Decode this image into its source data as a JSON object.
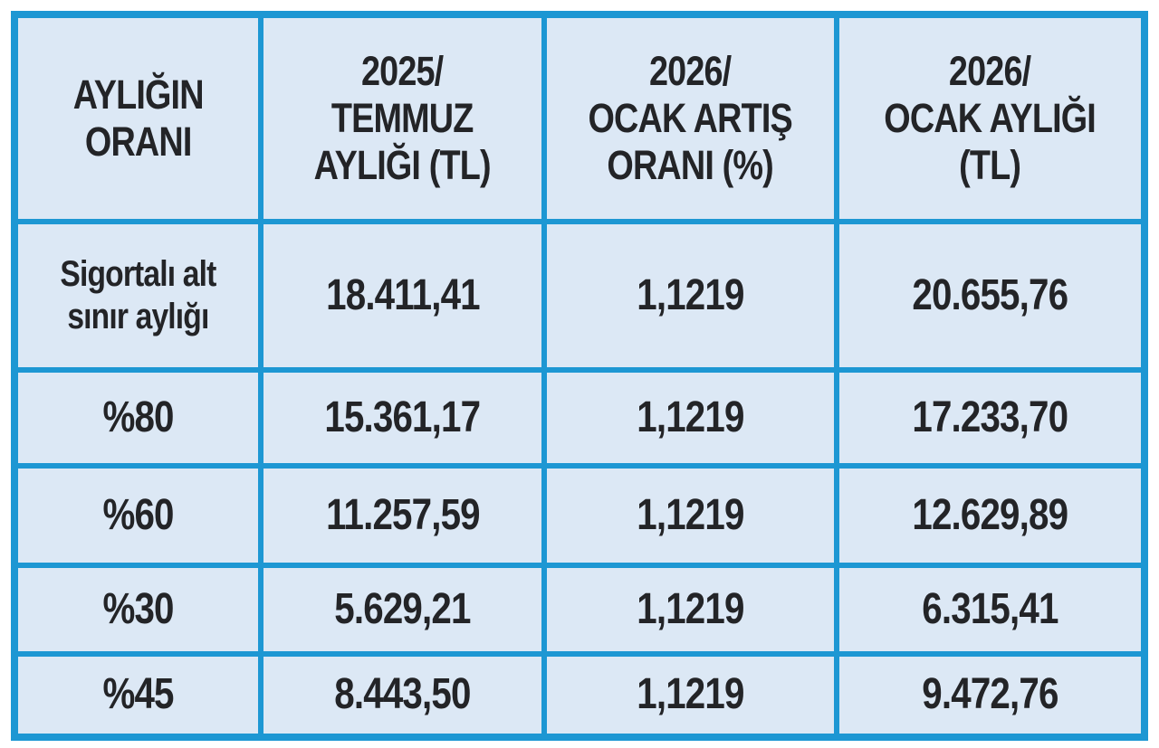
{
  "headers": [
    "AYLIĞIN\nORANI",
    "2025/\nTEMMUZ\nAYLIĞI (TL)",
    "2026/\nOCAK ARTIŞ\nORANI (%)",
    "2026/\nOCAK AYLIĞI\n(TL)"
  ],
  "rows": [
    [
      "Sigortalı alt\nsınır aylığı",
      "18.411,41",
      "1,1219",
      "20.655,76"
    ],
    [
      "%80",
      "15.361,17",
      "1,1219",
      "17.233,70"
    ],
    [
      "%60",
      "11.257,59",
      "1,1219",
      "12.629,89"
    ],
    [
      "%30",
      "5.629,21",
      "1,1219",
      "6.315,41"
    ],
    [
      "%45",
      "8.443,50",
      "1,1219",
      "9.472,76"
    ]
  ],
  "colors": {
    "border_blue": "#1d97d3",
    "cell_bg": "#dce8f5",
    "text": "#232427",
    "page_bg": "#ffffff"
  },
  "chart_data": {
    "type": "table",
    "columns": [
      "Aylığın Oranı",
      "2025/Temmuz Aylığı (TL)",
      "2026/Ocak Artış Oranı (%)",
      "2026/Ocak Aylığı (TL)"
    ],
    "rows": [
      [
        "Sigortalı alt sınır aylığı",
        "18.411,41",
        "1,1219",
        "20.655,76"
      ],
      [
        "%80",
        "15.361,17",
        "1,1219",
        "17.233,70"
      ],
      [
        "%60",
        "11.257,59",
        "1,1219",
        "12.629,89"
      ],
      [
        "%30",
        "5.629,21",
        "1,1219",
        "6.315,41"
      ],
      [
        "%45",
        "8.443,50",
        "1,1219",
        "9.472,76"
      ]
    ]
  }
}
